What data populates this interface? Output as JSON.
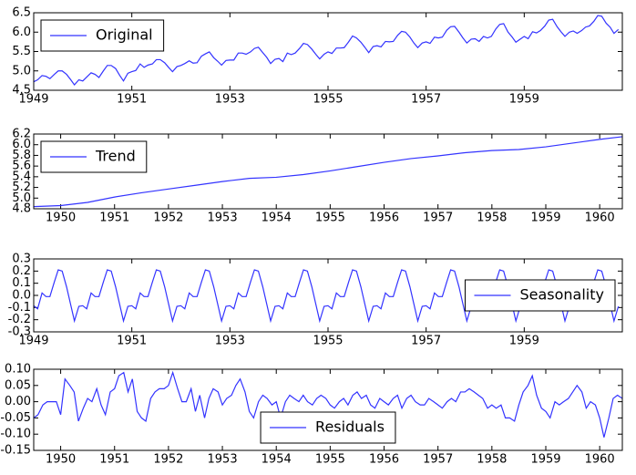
{
  "chart_data": [
    {
      "type": "line",
      "legend": "upper left",
      "series": [
        {
          "name": "Original",
          "color": "#3333ff",
          "values": [
            4.72,
            4.77,
            4.88,
            4.86,
            4.8,
            4.91,
            5.0,
            5.0,
            4.91,
            4.78,
            4.64,
            4.77,
            4.74,
            4.84,
            4.95,
            4.91,
            4.83,
            5.0,
            5.14,
            5.14,
            5.06,
            4.89,
            4.74,
            4.94,
            4.98,
            5.01,
            5.18,
            5.09,
            5.15,
            5.18,
            5.29,
            5.29,
            5.21,
            5.09,
            4.98,
            5.11,
            5.14,
            5.19,
            5.26,
            5.2,
            5.21,
            5.38,
            5.44,
            5.49,
            5.34,
            5.25,
            5.15,
            5.27,
            5.28,
            5.28,
            5.46,
            5.46,
            5.43,
            5.49,
            5.58,
            5.61,
            5.47,
            5.35,
            5.19,
            5.3,
            5.32,
            5.24,
            5.46,
            5.42,
            5.46,
            5.58,
            5.71,
            5.68,
            5.56,
            5.43,
            5.31,
            5.43,
            5.49,
            5.45,
            5.59,
            5.59,
            5.6,
            5.75,
            5.9,
            5.85,
            5.74,
            5.61,
            5.47,
            5.63,
            5.65,
            5.62,
            5.76,
            5.75,
            5.76,
            5.92,
            6.02,
            6.0,
            5.87,
            5.72,
            5.6,
            5.72,
            5.75,
            5.71,
            5.87,
            5.85,
            5.87,
            6.05,
            6.14,
            6.15,
            6.0,
            5.85,
            5.72,
            5.82,
            5.83,
            5.76,
            5.89,
            5.85,
            5.89,
            6.08,
            6.2,
            6.22,
            6.0,
            5.88,
            5.74,
            5.82,
            5.89,
            5.83,
            6.01,
            5.98,
            6.04,
            6.16,
            6.31,
            6.33,
            6.14,
            6.01,
            5.89,
            6.0,
            6.03,
            5.97,
            6.04,
            6.13,
            6.16,
            6.28,
            6.43,
            6.41,
            6.23,
            6.13,
            5.97,
            6.07
          ]
        }
      ],
      "x": [
        1949,
        1949.08,
        1949.17,
        1949.25,
        1949.33,
        1949.42,
        1949.5,
        1949.58,
        1949.67,
        1949.75,
        1949.83,
        1949.92,
        1950,
        1950.08,
        1950.17,
        1950.25,
        1950.33,
        1950.42,
        1950.5,
        1950.58,
        1950.67,
        1950.75,
        1950.83,
        1950.92,
        1951,
        1951.08,
        1951.17,
        1951.25,
        1951.33,
        1951.42,
        1951.5,
        1951.58,
        1951.67,
        1951.75,
        1951.83,
        1951.92,
        1952,
        1952.08,
        1952.17,
        1952.25,
        1952.33,
        1952.42,
        1952.5,
        1952.58,
        1952.67,
        1952.75,
        1952.83,
        1952.92,
        1953,
        1953.08,
        1953.17,
        1953.25,
        1953.33,
        1953.42,
        1953.5,
        1953.58,
        1953.67,
        1953.75,
        1953.83,
        1953.92,
        1954,
        1954.08,
        1954.17,
        1954.25,
        1954.33,
        1954.42,
        1954.5,
        1954.58,
        1954.67,
        1954.75,
        1954.83,
        1954.92,
        1955,
        1955.08,
        1955.17,
        1955.25,
        1955.33,
        1955.42,
        1955.5,
        1955.58,
        1955.67,
        1955.75,
        1955.83,
        1955.92,
        1956,
        1956.08,
        1956.17,
        1956.25,
        1956.33,
        1956.42,
        1956.5,
        1956.58,
        1956.67,
        1956.75,
        1956.83,
        1956.92,
        1957,
        1957.08,
        1957.17,
        1957.25,
        1957.33,
        1957.42,
        1957.5,
        1957.58,
        1957.67,
        1957.75,
        1957.83,
        1957.92,
        1958,
        1958.08,
        1958.17,
        1958.25,
        1958.33,
        1958.42,
        1958.5,
        1958.58,
        1958.67,
        1958.75,
        1958.83,
        1958.92,
        1959,
        1959.08,
        1959.17,
        1959.25,
        1959.33,
        1959.42,
        1959.5,
        1959.58,
        1959.67,
        1959.75,
        1959.83,
        1959.92,
        1960,
        1960.08,
        1960.17,
        1960.25,
        1960.33,
        1960.42,
        1960.5,
        1960.58,
        1960.67,
        1960.75,
        1960.83,
        1960.92
      ],
      "xlim": [
        1949,
        1961
      ],
      "xticks": [
        1949,
        1951,
        1953,
        1955,
        1957,
        1959
      ],
      "ylim": [
        4.5,
        6.5
      ],
      "yticks": [
        4.5,
        {
          "value": 5.0,
          "label": "5.0"
        },
        5.5,
        {
          "value": 6.0,
          "label": "6.0"
        },
        6.5
      ]
    },
    {
      "type": "line",
      "legend": "upper left",
      "series": [
        {
          "name": "Trend",
          "color": "#3333ff",
          "values": [
            4.84,
            4.86,
            4.92,
            5.02,
            5.1,
            5.17,
            5.24,
            5.31,
            5.37,
            5.39,
            5.44,
            5.51,
            5.59,
            5.67,
            5.74,
            5.79,
            5.85,
            5.89,
            5.91,
            5.96,
            6.03,
            6.1,
            6.15
          ]
        }
      ],
      "x": [
        1949.5,
        1950,
        1950.5,
        1951,
        1951.5,
        1952,
        1952.5,
        1953,
        1953.5,
        1954,
        1954.5,
        1955,
        1955.5,
        1956,
        1956.5,
        1957,
        1957.5,
        1958,
        1958.5,
        1959,
        1959.5,
        1960,
        1960.42
      ],
      "xlim": [
        1949.5,
        1960.42
      ],
      "xticks": [
        1950,
        1951,
        1952,
        1953,
        1954,
        1955,
        1956,
        1957,
        1958,
        1959,
        1960
      ],
      "ylim": [
        4.8,
        6.2
      ],
      "yticks": [
        4.8,
        {
          "value": 5.0,
          "label": "5.0"
        },
        5.2,
        5.4,
        5.6,
        5.8,
        {
          "value": 6.0,
          "label": "6.0"
        },
        6.2
      ]
    },
    {
      "type": "line",
      "legend": "center right",
      "series": [
        {
          "name": "Seasonality",
          "color": "#3333ff",
          "values": [
            -0.085,
            -0.11,
            0.02,
            -0.01,
            -0.01,
            0.11,
            0.21,
            0.2,
            0.07,
            -0.07,
            -0.21,
            -0.09,
            -0.085,
            -0.11,
            0.02,
            -0.01,
            -0.01,
            0.11,
            0.21,
            0.2,
            0.07,
            -0.07,
            -0.21,
            -0.09,
            -0.085,
            -0.11,
            0.02,
            -0.01,
            -0.01,
            0.11,
            0.21,
            0.2,
            0.07,
            -0.07,
            -0.21,
            -0.09,
            -0.085,
            -0.11,
            0.02,
            -0.01,
            -0.01,
            0.11,
            0.21,
            0.2,
            0.07,
            -0.07,
            -0.21,
            -0.09,
            -0.085,
            -0.11,
            0.02,
            -0.01,
            -0.01,
            0.11,
            0.21,
            0.2,
            0.07,
            -0.07,
            -0.21,
            -0.09,
            -0.085,
            -0.11,
            0.02,
            -0.01,
            -0.01,
            0.11,
            0.21,
            0.2,
            0.07,
            -0.07,
            -0.21,
            -0.09,
            -0.085,
            -0.11,
            0.02,
            -0.01,
            -0.01,
            0.11,
            0.21,
            0.2,
            0.07,
            -0.07,
            -0.21,
            -0.09,
            -0.085,
            -0.11,
            0.02,
            -0.01,
            -0.01,
            0.11,
            0.21,
            0.2,
            0.07,
            -0.07,
            -0.21,
            -0.09,
            -0.085,
            -0.11,
            0.02,
            -0.01,
            -0.01,
            0.11,
            0.21,
            0.2,
            0.07,
            -0.07,
            -0.21,
            -0.09,
            -0.085,
            -0.11,
            0.02,
            -0.01,
            -0.01,
            0.11,
            0.21,
            0.2,
            0.07,
            -0.07,
            -0.21,
            -0.09,
            -0.085,
            -0.11,
            0.02,
            -0.01,
            -0.01,
            0.11,
            0.21,
            0.2,
            0.07,
            -0.07,
            -0.21,
            -0.09,
            -0.085,
            -0.11,
            0.02,
            -0.01,
            -0.01,
            0.11,
            0.21,
            0.2,
            0.07,
            -0.07,
            -0.21,
            -0.09
          ]
        }
      ],
      "x": [
        1949,
        1949.08,
        1949.17,
        1949.25,
        1949.33,
        1949.42,
        1949.5,
        1949.58,
        1949.67,
        1949.75,
        1949.83,
        1949.92,
        1950,
        1950.08,
        1950.17,
        1950.25,
        1950.33,
        1950.42,
        1950.5,
        1950.58,
        1950.67,
        1950.75,
        1950.83,
        1950.92,
        1951,
        1951.08,
        1951.17,
        1951.25,
        1951.33,
        1951.42,
        1951.5,
        1951.58,
        1951.67,
        1951.75,
        1951.83,
        1951.92,
        1952,
        1952.08,
        1952.17,
        1952.25,
        1952.33,
        1952.42,
        1952.5,
        1952.58,
        1952.67,
        1952.75,
        1952.83,
        1952.92,
        1953,
        1953.08,
        1953.17,
        1953.25,
        1953.33,
        1953.42,
        1953.5,
        1953.58,
        1953.67,
        1953.75,
        1953.83,
        1953.92,
        1954,
        1954.08,
        1954.17,
        1954.25,
        1954.33,
        1954.42,
        1954.5,
        1954.58,
        1954.67,
        1954.75,
        1954.83,
        1954.92,
        1955,
        1955.08,
        1955.17,
        1955.25,
        1955.33,
        1955.42,
        1955.5,
        1955.58,
        1955.67,
        1955.75,
        1955.83,
        1955.92,
        1956,
        1956.08,
        1956.17,
        1956.25,
        1956.33,
        1956.42,
        1956.5,
        1956.58,
        1956.67,
        1956.75,
        1956.83,
        1956.92,
        1957,
        1957.08,
        1957.17,
        1957.25,
        1957.33,
        1957.42,
        1957.5,
        1957.58,
        1957.67,
        1957.75,
        1957.83,
        1957.92,
        1958,
        1958.08,
        1958.17,
        1958.25,
        1958.33,
        1958.42,
        1958.5,
        1958.58,
        1958.67,
        1958.75,
        1958.83,
        1958.92,
        1959,
        1959.08,
        1959.17,
        1959.25,
        1959.33,
        1959.42,
        1959.5,
        1959.58,
        1959.67,
        1959.75,
        1959.83,
        1959.92,
        1960,
        1960.08,
        1960.17,
        1960.25,
        1960.33,
        1960.42,
        1960.5,
        1960.58,
        1960.67,
        1960.75,
        1960.83,
        1960.92
      ],
      "xlim": [
        1949,
        1961
      ],
      "xticks": [
        1949,
        1951,
        1953,
        1955,
        1957,
        1959
      ],
      "ylim": [
        -0.3,
        0.3
      ],
      "yticks": [
        -0.3,
        -0.2,
        -0.1,
        {
          "value": 0.0,
          "label": "0.0"
        },
        0.1,
        0.2,
        0.3
      ]
    },
    {
      "type": "line",
      "legend": "lower center",
      "series": [
        {
          "name": "Residuals",
          "color": "#3333ff",
          "values": [
            -0.05,
            -0.04,
            -0.01,
            0.0,
            0.0,
            0.0,
            -0.04,
            0.07,
            0.05,
            0.03,
            -0.06,
            -0.02,
            0.01,
            0.0,
            0.04,
            -0.01,
            -0.04,
            0.03,
            0.04,
            0.08,
            0.09,
            0.03,
            0.07,
            -0.03,
            -0.05,
            -0.06,
            0.01,
            0.03,
            0.04,
            0.04,
            0.05,
            0.09,
            0.04,
            0.0,
            0.0,
            0.04,
            -0.03,
            0.02,
            -0.05,
            0.01,
            0.04,
            0.03,
            -0.01,
            0.01,
            0.02,
            0.05,
            0.07,
            0.03,
            -0.03,
            -0.05,
            0.0,
            0.02,
            0.01,
            -0.01,
            0.0,
            -0.05,
            0.0,
            0.02,
            0.01,
            0.0,
            0.02,
            0.0,
            -0.01,
            0.01,
            0.02,
            0.01,
            -0.01,
            -0.02,
            0.0,
            0.01,
            -0.01,
            0.02,
            0.03,
            0.01,
            0.02,
            -0.01,
            -0.02,
            0.01,
            0.0,
            -0.01,
            0.01,
            0.02,
            -0.02,
            0.01,
            0.02,
            0.0,
            -0.01,
            -0.01,
            0.01,
            0.0,
            -0.01,
            -0.02,
            0.0,
            0.01,
            0.0,
            0.03,
            0.03,
            0.04,
            0.03,
            0.02,
            0.01,
            -0.02,
            -0.01,
            -0.02,
            -0.01,
            -0.05,
            -0.05,
            -0.06,
            -0.01,
            0.03,
            0.05,
            0.08,
            0.02,
            -0.02,
            -0.03,
            -0.05,
            0.0,
            -0.01,
            0.0,
            0.01,
            0.03,
            0.05,
            0.03,
            -0.02,
            0.0,
            -0.01,
            -0.05,
            -0.11,
            -0.05,
            0.01,
            0.02,
            0.01
          ]
        }
      ],
      "x": [
        1949.5,
        1949.58,
        1949.67,
        1949.75,
        1949.83,
        1949.92,
        1950,
        1950.08,
        1950.17,
        1950.25,
        1950.33,
        1950.42,
        1950.5,
        1950.58,
        1950.67,
        1950.75,
        1950.83,
        1950.92,
        1951,
        1951.08,
        1951.17,
        1951.25,
        1951.33,
        1951.42,
        1951.5,
        1951.58,
        1951.67,
        1951.75,
        1951.83,
        1951.92,
        1952,
        1952.08,
        1952.17,
        1952.25,
        1952.33,
        1952.42,
        1952.5,
        1952.58,
        1952.67,
        1952.75,
        1952.83,
        1952.92,
        1953,
        1953.08,
        1953.17,
        1953.25,
        1953.33,
        1953.42,
        1953.5,
        1953.58,
        1953.67,
        1953.75,
        1953.83,
        1953.92,
        1954,
        1954.08,
        1954.17,
        1954.25,
        1954.33,
        1954.42,
        1954.5,
        1954.58,
        1954.67,
        1954.75,
        1954.83,
        1954.92,
        1955,
        1955.08,
        1955.17,
        1955.25,
        1955.33,
        1955.42,
        1955.5,
        1955.58,
        1955.67,
        1955.75,
        1955.83,
        1955.92,
        1956,
        1956.08,
        1956.17,
        1956.25,
        1956.33,
        1956.42,
        1956.5,
        1956.58,
        1956.67,
        1956.75,
        1956.83,
        1956.92,
        1957,
        1957.08,
        1957.17,
        1957.25,
        1957.33,
        1957.42,
        1957.5,
        1957.58,
        1957.67,
        1957.75,
        1957.83,
        1957.92,
        1958,
        1958.08,
        1958.17,
        1958.25,
        1958.33,
        1958.42,
        1958.5,
        1958.58,
        1958.67,
        1958.75,
        1958.83,
        1958.92,
        1959,
        1959.08,
        1959.17,
        1959.25,
        1959.33,
        1959.42,
        1959.5,
        1959.58,
        1959.67,
        1959.75,
        1959.83,
        1959.92,
        1960,
        1960.08,
        1960.17,
        1960.25,
        1960.33,
        1960.42
      ],
      "xlim": [
        1949.5,
        1960.42
      ],
      "xticks": [
        1950,
        1951,
        1952,
        1953,
        1954,
        1955,
        1956,
        1957,
        1958,
        1959,
        1960
      ],
      "ylim": [
        -0.15,
        0.1
      ],
      "yticks": [
        {
          "value": -0.15,
          "label": "-0.15"
        },
        {
          "value": -0.1,
          "label": "-0.10"
        },
        {
          "value": -0.05,
          "label": "-0.05"
        },
        {
          "value": 0.0,
          "label": "0.00"
        },
        {
          "value": 0.05,
          "label": "0.05"
        },
        {
          "value": 0.1,
          "label": "0.10"
        }
      ]
    }
  ]
}
